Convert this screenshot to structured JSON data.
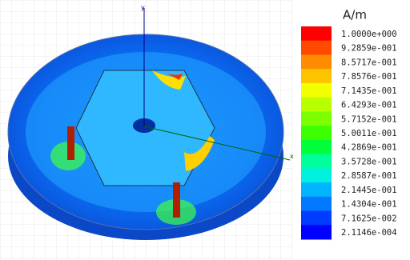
{
  "axes": {
    "y": "y",
    "x": "x"
  },
  "legend": {
    "unit": "A/m",
    "entries": [
      {
        "label": "1.0000e+000",
        "color": "#ff0000"
      },
      {
        "label": "9.2859e-001",
        "color": "#ff4a00"
      },
      {
        "label": "8.5717e-001",
        "color": "#ff8c00"
      },
      {
        "label": "7.8576e-001",
        "color": "#ffc400"
      },
      {
        "label": "7.1435e-001",
        "color": "#f2ff00"
      },
      {
        "label": "6.4293e-001",
        "color": "#b8ff00"
      },
      {
        "label": "5.7152e-001",
        "color": "#7cff00"
      },
      {
        "label": "5.0011e-001",
        "color": "#3cff00"
      },
      {
        "label": "4.2869e-001",
        "color": "#00ff3a"
      },
      {
        "label": "3.5728e-001",
        "color": "#00ff9a"
      },
      {
        "label": "2.8587e-001",
        "color": "#00f0e0"
      },
      {
        "label": "2.1445e-001",
        "color": "#00b4ff"
      },
      {
        "label": "1.4304e-001",
        "color": "#0078ff"
      },
      {
        "label": "7.1625e-002",
        "color": "#003cff"
      },
      {
        "label": "2.1146e-004",
        "color": "#0000ff"
      }
    ]
  }
}
